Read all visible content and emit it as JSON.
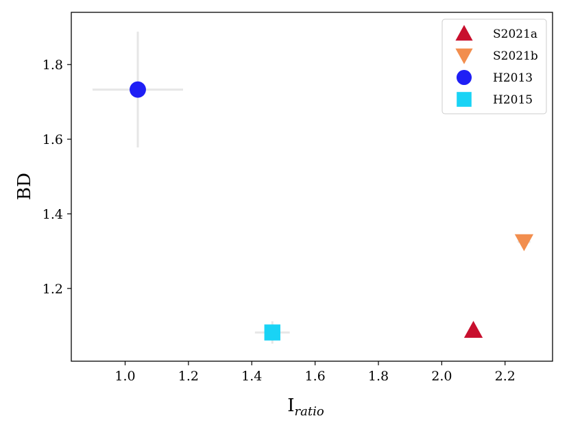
{
  "chart_data": {
    "type": "scatter",
    "title": "",
    "xlabel": "I",
    "xlabel_sub": "ratio",
    "ylabel": "BD",
    "xlim": [
      0.83,
      2.35
    ],
    "ylim": [
      1.005,
      1.94
    ],
    "xticks": [
      "1.0",
      "1.2",
      "1.4",
      "1.6",
      "1.8",
      "2.0",
      "2.2"
    ],
    "yticks": [
      "1.2",
      "1.4",
      "1.6",
      "1.8"
    ],
    "grid": false,
    "legend_position": "top-right",
    "series": [
      {
        "name": "S2021a",
        "marker": "triangle-up",
        "color": "#c8102e",
        "x": 2.1,
        "y": 1.088,
        "xerr": 0.0,
        "yerr": 0.0
      },
      {
        "name": "S2021b",
        "marker": "triangle-down",
        "color": "#f28e4e",
        "x": 2.26,
        "y": 1.325,
        "xerr": 0.02,
        "yerr": 0.0
      },
      {
        "name": "H2013",
        "marker": "circle",
        "color": "#1f1ff5",
        "x": 1.04,
        "y": 1.733,
        "xerr": 0.143,
        "yerr": 0.155
      },
      {
        "name": "H2015",
        "marker": "square",
        "color": "#19d3f5",
        "x": 1.465,
        "y": 1.082,
        "xerr": 0.055,
        "yerr": 0.03
      }
    ]
  }
}
